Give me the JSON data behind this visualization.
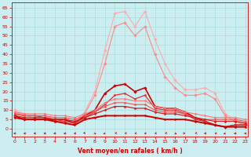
{
  "background_color": "#cceef0",
  "grid_color": "#aadddd",
  "xlabel": "Vent moyen/en rafales ( km/h )",
  "xlabel_color": "#cc0000",
  "tick_color": "#cc0000",
  "x_ticks": [
    0,
    1,
    2,
    3,
    4,
    5,
    6,
    7,
    8,
    9,
    10,
    11,
    12,
    13,
    14,
    15,
    16,
    17,
    18,
    19,
    20,
    21,
    22,
    23
  ],
  "y_ticks": [
    0,
    5,
    10,
    15,
    20,
    25,
    30,
    35,
    40,
    45,
    50,
    55,
    60,
    65
  ],
  "ylim": [
    -4,
    68
  ],
  "xlim": [
    -0.3,
    23.3
  ],
  "series": [
    {
      "name": "rafales_max",
      "color": "#ffaaaa",
      "lw": 0.8,
      "marker": "D",
      "ms": 1.8,
      "data_x": [
        0,
        1,
        2,
        3,
        4,
        5,
        6,
        7,
        8,
        9,
        10,
        11,
        12,
        13,
        14,
        15,
        16,
        17,
        18,
        19,
        20,
        21,
        22,
        23
      ],
      "data_y": [
        10,
        8,
        7,
        7,
        5,
        5,
        4,
        9,
        20,
        42,
        62,
        63,
        55,
        63,
        48,
        35,
        26,
        21,
        21,
        22,
        19,
        8,
        5,
        3
      ]
    },
    {
      "name": "rafales_mid",
      "color": "#ff8888",
      "lw": 0.8,
      "marker": "D",
      "ms": 1.8,
      "data_x": [
        0,
        1,
        2,
        3,
        4,
        5,
        6,
        7,
        8,
        9,
        10,
        11,
        12,
        13,
        14,
        15,
        16,
        17,
        18,
        19,
        20,
        21,
        22,
        23
      ],
      "data_y": [
        9,
        7,
        6,
        6,
        4,
        4,
        3,
        8,
        18,
        35,
        55,
        57,
        50,
        55,
        40,
        28,
        22,
        18,
        18,
        19,
        16,
        7,
        4,
        2
      ]
    },
    {
      "name": "moyen_peak",
      "color": "#cc0000",
      "lw": 1.2,
      "marker": "D",
      "ms": 1.8,
      "data_x": [
        0,
        1,
        2,
        3,
        4,
        5,
        6,
        7,
        8,
        9,
        10,
        11,
        12,
        13,
        14,
        15,
        16,
        17,
        18,
        19,
        20,
        21,
        22,
        23
      ],
      "data_y": [
        7,
        5,
        5,
        5,
        5,
        5,
        3,
        7,
        10,
        19,
        23,
        24,
        20,
        22,
        12,
        11,
        11,
        9,
        6,
        4,
        2,
        1,
        2,
        2
      ]
    },
    {
      "name": "moyen_mid",
      "color": "#dd3333",
      "lw": 0.9,
      "marker": "D",
      "ms": 1.5,
      "data_x": [
        0,
        1,
        2,
        3,
        4,
        5,
        6,
        7,
        8,
        9,
        10,
        11,
        12,
        13,
        14,
        15,
        16,
        17,
        18,
        19,
        20,
        21,
        22,
        23
      ],
      "data_y": [
        8,
        7,
        7,
        6,
        5,
        4,
        3,
        6,
        9,
        13,
        18,
        19,
        16,
        18,
        11,
        10,
        10,
        8,
        5,
        4,
        2,
        1,
        2,
        2
      ]
    },
    {
      "name": "flat_high",
      "color": "#ff7777",
      "lw": 0.8,
      "marker": "D",
      "ms": 1.5,
      "data_x": [
        0,
        1,
        2,
        3,
        4,
        5,
        6,
        7,
        8,
        9,
        10,
        11,
        12,
        13,
        14,
        15,
        16,
        17,
        18,
        19,
        20,
        21,
        22,
        23
      ],
      "data_y": [
        9,
        8,
        8,
        8,
        7,
        7,
        6,
        8,
        10,
        14,
        16,
        16,
        15,
        15,
        12,
        11,
        11,
        9,
        8,
        7,
        6,
        6,
        6,
        5
      ]
    },
    {
      "name": "flat_mid",
      "color": "#ee5555",
      "lw": 0.8,
      "marker": "D",
      "ms": 1.5,
      "data_x": [
        0,
        1,
        2,
        3,
        4,
        5,
        6,
        7,
        8,
        9,
        10,
        11,
        12,
        13,
        14,
        15,
        16,
        17,
        18,
        19,
        20,
        21,
        22,
        23
      ],
      "data_y": [
        8,
        7,
        7,
        7,
        6,
        6,
        5,
        7,
        9,
        12,
        14,
        14,
        13,
        13,
        10,
        9,
        9,
        8,
        6,
        5,
        5,
        5,
        5,
        4
      ]
    },
    {
      "name": "flat_low",
      "color": "#cc2222",
      "lw": 0.9,
      "marker": "D",
      "ms": 1.5,
      "data_x": [
        0,
        1,
        2,
        3,
        4,
        5,
        6,
        7,
        8,
        9,
        10,
        11,
        12,
        13,
        14,
        15,
        16,
        17,
        18,
        19,
        20,
        21,
        22,
        23
      ],
      "data_y": [
        7,
        6,
        6,
        6,
        5,
        5,
        4,
        6,
        8,
        10,
        12,
        12,
        11,
        11,
        9,
        8,
        8,
        7,
        6,
        5,
        4,
        4,
        4,
        3
      ]
    },
    {
      "name": "near_zero",
      "color": "#cc0000",
      "lw": 1.4,
      "marker": "D",
      "ms": 1.4,
      "data_x": [
        0,
        1,
        2,
        3,
        4,
        5,
        6,
        7,
        8,
        9,
        10,
        11,
        12,
        13,
        14,
        15,
        16,
        17,
        18,
        19,
        20,
        21,
        22,
        23
      ],
      "data_y": [
        6,
        5,
        5,
        5,
        4,
        3,
        2,
        5,
        6,
        7,
        7,
        7,
        7,
        7,
        6,
        5,
        5,
        5,
        4,
        3,
        2,
        1,
        1,
        1
      ]
    }
  ],
  "wind_arrows": {
    "x": [
      0,
      1,
      2,
      3,
      4,
      5,
      6,
      7,
      8,
      9,
      10,
      11,
      12,
      13,
      14,
      15,
      16,
      17,
      18,
      19,
      20,
      21,
      22,
      23
    ],
    "angles": [
      270,
      270,
      260,
      270,
      270,
      270,
      290,
      10,
      25,
      330,
      320,
      315,
      310,
      300,
      310,
      320,
      35,
      45,
      320,
      290,
      310,
      330,
      270,
      250
    ]
  }
}
